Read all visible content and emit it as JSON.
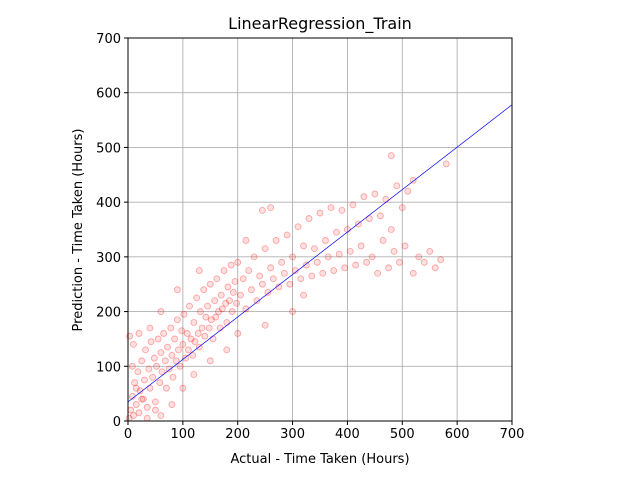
{
  "chart_data": {
    "type": "scatter",
    "title": "LinearRegression_Train",
    "xlabel": "Actual - Time Taken (Hours)",
    "ylabel": "Prediction - Time Taken (Hours)",
    "xlim": [
      0,
      700
    ],
    "ylim": [
      0,
      700
    ],
    "xticks": [
      "0",
      "100",
      "200",
      "300",
      "400",
      "500",
      "600",
      "700"
    ],
    "yticks": [
      "0",
      "100",
      "200",
      "300",
      "400",
      "500",
      "600",
      "700"
    ],
    "grid": true,
    "colors": {
      "points": "#ff0000",
      "fit_line": "#0000ff",
      "grid": "#b0b0b0"
    },
    "fit_line": {
      "x": [
        0,
        700
      ],
      "y": [
        35,
        578
      ]
    },
    "series": [
      {
        "points": [
          [
            2,
            5
          ],
          [
            5,
            20
          ],
          [
            8,
            45
          ],
          [
            10,
            10
          ],
          [
            12,
            70
          ],
          [
            15,
            30
          ],
          [
            18,
            90
          ],
          [
            20,
            15
          ],
          [
            22,
            55
          ],
          [
            25,
            110
          ],
          [
            28,
            40
          ],
          [
            30,
            75
          ],
          [
            32,
            130
          ],
          [
            35,
            25
          ],
          [
            38,
            95
          ],
          [
            40,
            60
          ],
          [
            42,
            145
          ],
          [
            45,
            80
          ],
          [
            48,
            115
          ],
          [
            50,
            35
          ],
          [
            52,
            100
          ],
          [
            55,
            150
          ],
          [
            58,
            70
          ],
          [
            60,
            125
          ],
          [
            62,
            90
          ],
          [
            65,
            160
          ],
          [
            68,
            110
          ],
          [
            70,
            60
          ],
          [
            72,
            135
          ],
          [
            75,
            95
          ],
          [
            78,
            170
          ],
          [
            80,
            120
          ],
          [
            82,
            80
          ],
          [
            85,
            150
          ],
          [
            88,
            110
          ],
          [
            90,
            185
          ],
          [
            92,
            130
          ],
          [
            95,
            100
          ],
          [
            98,
            165
          ],
          [
            100,
            140
          ],
          [
            102,
            195
          ],
          [
            105,
            115
          ],
          [
            108,
            160
          ],
          [
            110,
            130
          ],
          [
            112,
            210
          ],
          [
            115,
            150
          ],
          [
            118,
            120
          ],
          [
            120,
            180
          ],
          [
            122,
            145
          ],
          [
            125,
            225
          ],
          [
            128,
            160
          ],
          [
            130,
            135
          ],
          [
            132,
            200
          ],
          [
            135,
            170
          ],
          [
            138,
            240
          ],
          [
            140,
            155
          ],
          [
            142,
            190
          ],
          [
            145,
            210
          ],
          [
            148,
            170
          ],
          [
            150,
            250
          ],
          [
            152,
            185
          ],
          [
            155,
            150
          ],
          [
            158,
            220
          ],
          [
            160,
            190
          ],
          [
            162,
            260
          ],
          [
            165,
            200
          ],
          [
            168,
            170
          ],
          [
            170,
            230
          ],
          [
            172,
            205
          ],
          [
            175,
            275
          ],
          [
            178,
            215
          ],
          [
            180,
            180
          ],
          [
            182,
            245
          ],
          [
            185,
            220
          ],
          [
            188,
            285
          ],
          [
            190,
            200
          ],
          [
            192,
            235
          ],
          [
            195,
            255
          ],
          [
            198,
            215
          ],
          [
            200,
            290
          ],
          [
            205,
            230
          ],
          [
            210,
            260
          ],
          [
            215,
            205
          ],
          [
            220,
            275
          ],
          [
            225,
            240
          ],
          [
            230,
            300
          ],
          [
            235,
            220
          ],
          [
            240,
            265
          ],
          [
            245,
            250
          ],
          [
            250,
            315
          ],
          [
            255,
            235
          ],
          [
            260,
            280
          ],
          [
            265,
            260
          ],
          [
            270,
            330
          ],
          [
            275,
            245
          ],
          [
            280,
            290
          ],
          [
            285,
            270
          ],
          [
            290,
            340
          ],
          [
            295,
            250
          ],
          [
            300,
            300
          ],
          [
            305,
            275
          ],
          [
            310,
            355
          ],
          [
            315,
            260
          ],
          [
            320,
            320
          ],
          [
            325,
            285
          ],
          [
            330,
            370
          ],
          [
            335,
            265
          ],
          [
            340,
            315
          ],
          [
            345,
            290
          ],
          [
            350,
            380
          ],
          [
            355,
            270
          ],
          [
            360,
            330
          ],
          [
            365,
            300
          ],
          [
            370,
            390
          ],
          [
            375,
            275
          ],
          [
            380,
            345
          ],
          [
            385,
            305
          ],
          [
            390,
            385
          ],
          [
            395,
            280
          ],
          [
            400,
            350
          ],
          [
            405,
            310
          ],
          [
            410,
            395
          ],
          [
            415,
            285
          ],
          [
            420,
            360
          ],
          [
            425,
            320
          ],
          [
            430,
            410
          ],
          [
            435,
            290
          ],
          [
            440,
            370
          ],
          [
            445,
            300
          ],
          [
            450,
            415
          ],
          [
            455,
            270
          ],
          [
            460,
            375
          ],
          [
            465,
            330
          ],
          [
            470,
            405
          ],
          [
            475,
            280
          ],
          [
            480,
            350
          ],
          [
            485,
            310
          ],
          [
            490,
            430
          ],
          [
            495,
            290
          ],
          [
            500,
            390
          ],
          [
            505,
            320
          ],
          [
            510,
            420
          ],
          [
            520,
            270
          ],
          [
            530,
            300
          ],
          [
            540,
            290
          ],
          [
            550,
            310
          ],
          [
            560,
            280
          ],
          [
            570,
            295
          ],
          [
            580,
            470
          ],
          [
            245,
            385
          ],
          [
            260,
            390
          ],
          [
            215,
            330
          ],
          [
            480,
            485
          ],
          [
            520,
            440
          ],
          [
            130,
            275
          ],
          [
            90,
            240
          ],
          [
            60,
            200
          ],
          [
            40,
            170
          ],
          [
            20,
            160
          ],
          [
            10,
            140
          ],
          [
            300,
            200
          ],
          [
            320,
            230
          ],
          [
            250,
            175
          ],
          [
            200,
            160
          ],
          [
            180,
            130
          ],
          [
            150,
            110
          ],
          [
            120,
            85
          ],
          [
            100,
            60
          ],
          [
            80,
            30
          ],
          [
            60,
            10
          ],
          [
            50,
            20
          ],
          [
            35,
            5
          ],
          [
            25,
            40
          ],
          [
            15,
            60
          ],
          [
            8,
            100
          ],
          [
            3,
            155
          ]
        ]
      }
    ]
  }
}
